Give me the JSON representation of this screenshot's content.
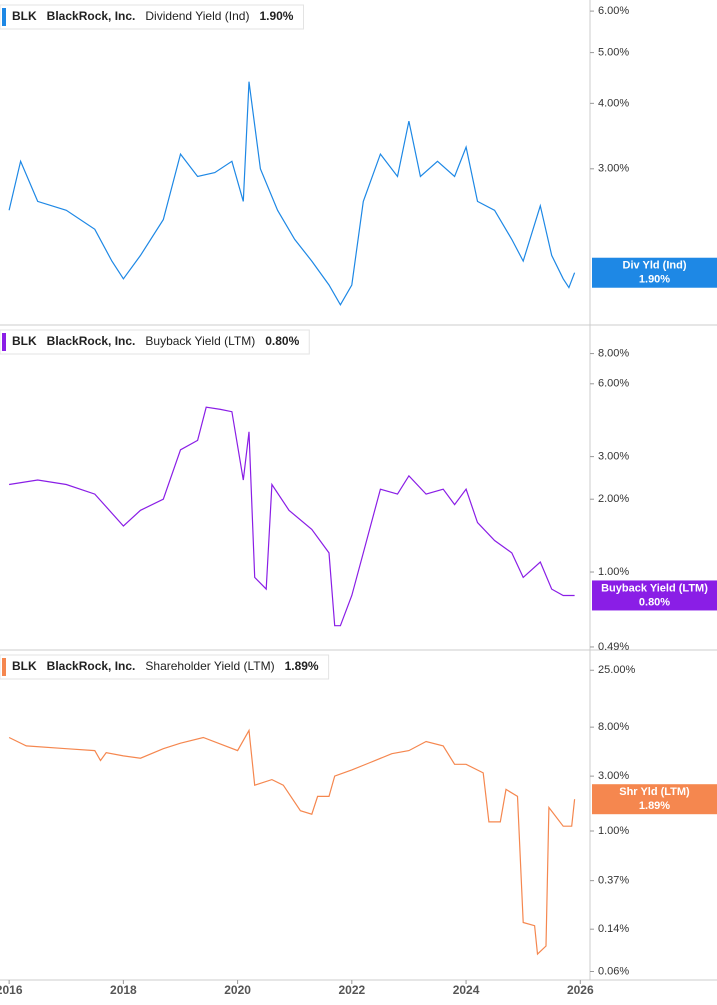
{
  "chart_data": [
    {
      "type": "line",
      "ticker": "BLK",
      "company": "BlackRock, Inc.",
      "last_label": "1.90%",
      "flag_label": "Div Yld (Ind)",
      "log_scale": true,
      "xlim": [
        2015.84,
        2026.17
      ],
      "ylim": [
        1.51,
        6.3
      ],
      "yticks": [
        {
          "value": 6,
          "label": "6.00%"
        },
        {
          "value": 5,
          "label": "5.00%"
        },
        {
          "value": 4,
          "label": "4.00%"
        },
        {
          "value": 3,
          "label": "3.00%"
        }
      ],
      "x": [
        2016,
        2016.2,
        2016.5,
        2017,
        2017.5,
        2017.8,
        2018.0,
        2018.3,
        2018.7,
        2019.0,
        2019.3,
        2019.6,
        2019.9,
        2020.1,
        2020.2,
        2020.4,
        2020.7,
        2021.0,
        2021.3,
        2021.6,
        2021.8,
        2022.0,
        2022.2,
        2022.5,
        2022.8,
        2023.0,
        2023.2,
        2023.5,
        2023.8,
        2024.0,
        2024.2,
        2024.5,
        2024.8,
        2025.0,
        2025.3,
        2025.5,
        2025.7,
        2025.8,
        2025.9
      ],
      "series": [
        {
          "name": "Dividend Yield (Ind)",
          "color": "#1e88e5",
          "values": [
            2.5,
            3.1,
            2.6,
            2.5,
            2.3,
            2.0,
            1.85,
            2.05,
            2.4,
            3.2,
            2.9,
            2.95,
            3.1,
            2.6,
            4.4,
            3.0,
            2.5,
            2.2,
            2.0,
            1.8,
            1.65,
            1.8,
            2.6,
            3.2,
            2.9,
            3.7,
            2.9,
            3.1,
            2.9,
            3.3,
            2.6,
            2.5,
            2.2,
            2.0,
            2.55,
            2.05,
            1.85,
            1.78,
            1.9
          ]
        }
      ]
    },
    {
      "type": "line",
      "ticker": "BLK",
      "company": "BlackRock, Inc.",
      "last_label": "0.80%",
      "flag_label": "Buyback Yield (LTM)",
      "log_scale": true,
      "xlim": [
        2015.84,
        2026.17
      ],
      "ylim": [
        0.476,
        10.5
      ],
      "yticks": [
        {
          "value": 8,
          "label": "8.00%"
        },
        {
          "value": 6,
          "label": "6.00%"
        },
        {
          "value": 3,
          "label": "3.00%"
        },
        {
          "value": 2,
          "label": "2.00%"
        },
        {
          "value": 1,
          "label": "1.00%"
        },
        {
          "value": 0.49,
          "label": "0.49%"
        }
      ],
      "x": [
        2016,
        2016.5,
        2017,
        2017.5,
        2018.0,
        2018.3,
        2018.7,
        2019.0,
        2019.3,
        2019.45,
        2019.7,
        2019.9,
        2020.1,
        2020.2,
        2020.3,
        2020.5,
        2020.6,
        2020.9,
        2021.3,
        2021.6,
        2021.7,
        2021.8,
        2022.0,
        2022.2,
        2022.5,
        2022.8,
        2023.0,
        2023.3,
        2023.6,
        2023.8,
        2024.0,
        2024.2,
        2024.5,
        2024.8,
        2025.0,
        2025.3,
        2025.5,
        2025.7,
        2025.9
      ],
      "series": [
        {
          "name": "Buyback Yield (LTM)",
          "color": "#8a1ee6",
          "values": [
            2.3,
            2.4,
            2.3,
            2.1,
            1.55,
            1.8,
            2.0,
            3.2,
            3.5,
            4.8,
            4.7,
            4.6,
            2.4,
            3.8,
            0.95,
            0.85,
            2.3,
            1.8,
            1.5,
            1.2,
            0.6,
            0.6,
            0.8,
            1.2,
            2.2,
            2.1,
            2.5,
            2.1,
            2.2,
            1.9,
            2.2,
            1.6,
            1.35,
            1.2,
            0.95,
            1.1,
            0.85,
            0.8,
            0.8
          ]
        }
      ]
    },
    {
      "type": "line",
      "ticker": "BLK",
      "company": "BlackRock, Inc.",
      "last_label": "1.89%",
      "flag_label": "Shr Yld (LTM)",
      "log_scale": true,
      "xlim": [
        2015.84,
        2026.17
      ],
      "ylim": [
        0.0506,
        37.5
      ],
      "xticks": [
        2016,
        2018,
        2020,
        2022,
        2024,
        2026
      ],
      "yticks": [
        {
          "value": 25,
          "label": "25.00%"
        },
        {
          "value": 8,
          "label": "8.00%"
        },
        {
          "value": 3,
          "label": "3.00%"
        },
        {
          "value": 1,
          "label": "1.00%"
        },
        {
          "value": 0.37,
          "label": "0.37%"
        },
        {
          "value": 0.14,
          "label": "0.14%"
        },
        {
          "value": 0.06,
          "label": "0.06%"
        }
      ],
      "x": [
        2016,
        2016.3,
        2017,
        2017.5,
        2017.6,
        2017.7,
        2018.0,
        2018.3,
        2018.7,
        2019.0,
        2019.4,
        2019.7,
        2020.0,
        2020.2,
        2020.3,
        2020.6,
        2020.8,
        2021.1,
        2021.3,
        2021.4,
        2021.6,
        2021.7,
        2022.0,
        2022.3,
        2022.7,
        2023.0,
        2023.3,
        2023.6,
        2023.8,
        2024.0,
        2024.3,
        2024.4,
        2024.6,
        2024.7,
        2024.9,
        2025.0,
        2025.2,
        2025.25,
        2025.4,
        2025.45,
        2025.7,
        2025.85,
        2025.9
      ],
      "series": [
        {
          "name": "Shareholder Yield (LTM)",
          "color": "#f5874f",
          "values": [
            6.5,
            5.5,
            5.2,
            5.0,
            4.1,
            4.8,
            4.5,
            4.3,
            5.2,
            5.8,
            6.5,
            5.7,
            5.0,
            7.5,
            2.5,
            2.8,
            2.5,
            1.5,
            1.4,
            2.0,
            2.0,
            3.0,
            3.4,
            3.9,
            4.7,
            5.0,
            6.0,
            5.5,
            3.8,
            3.8,
            3.2,
            1.2,
            1.2,
            2.3,
            2.0,
            0.16,
            0.15,
            0.085,
            0.1,
            1.6,
            1.1,
            1.1,
            1.89
          ]
        }
      ]
    }
  ]
}
